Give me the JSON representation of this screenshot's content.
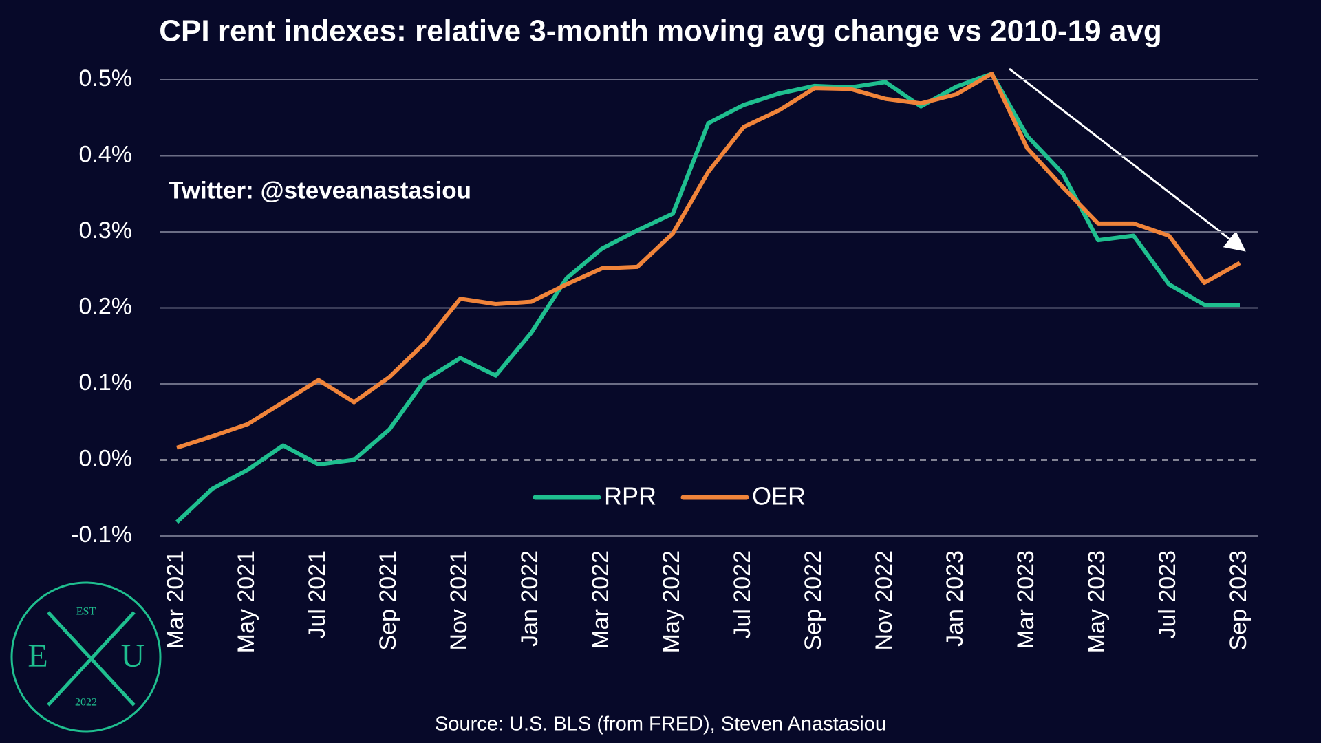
{
  "chart_data": {
    "type": "line",
    "title": "CPI rent indexes: relative 3-month moving avg change vs 2010-19 avg",
    "annotation": "Twitter: @steveanastasiou",
    "source": "Source: U.S. BLS (from FRED), Steven Anastasiou",
    "categories": [
      "Mar 2021",
      null,
      "May 2021",
      null,
      "Jul 2021",
      null,
      "Sep 2021",
      null,
      "Nov 2021",
      null,
      "Jan 2022",
      null,
      "Mar 2022",
      null,
      "May 2022",
      null,
      "Jul 2022",
      null,
      "Sep 2022",
      null,
      "Nov 2022",
      null,
      "Jan 2023",
      null,
      "Mar 2023",
      null,
      "May 2023",
      null,
      "Jul 2023",
      null,
      "Sep 2023"
    ],
    "series": [
      {
        "name": "RPR",
        "color": "#1fbf8f",
        "values": [
          -0.082,
          -0.038,
          -0.013,
          0.019,
          -0.006,
          0.0,
          0.04,
          0.105,
          0.134,
          0.111,
          0.167,
          0.239,
          0.278,
          0.302,
          0.324,
          0.443,
          0.467,
          0.482,
          0.492,
          0.49,
          0.497,
          0.465,
          0.491,
          0.508,
          0.426,
          0.377,
          0.289,
          0.295,
          0.231,
          0.204,
          0.204
        ]
      },
      {
        "name": "OER",
        "color": "#f0843a",
        "values": [
          0.016,
          0.031,
          0.047,
          0.076,
          0.105,
          0.076,
          0.109,
          0.154,
          0.212,
          0.205,
          0.208,
          0.231,
          0.252,
          0.254,
          0.298,
          0.379,
          0.438,
          0.46,
          0.489,
          0.488,
          0.475,
          0.469,
          0.481,
          0.508,
          0.41,
          0.359,
          0.311,
          0.311,
          0.295,
          0.233,
          0.259
        ]
      }
    ],
    "ylim": [
      -0.1,
      0.5
    ],
    "yticks": [
      {
        "value": -0.1,
        "label": "-0.1%"
      },
      {
        "value": 0,
        "label": "0.0%"
      },
      {
        "value": 0.1,
        "label": "0.1%"
      },
      {
        "value": 0.2,
        "label": "0.2%"
      },
      {
        "value": 0.3,
        "label": "0.3%"
      },
      {
        "value": 0.4,
        "label": "0.4%"
      },
      {
        "value": 0.5,
        "label": "0.5%"
      }
    ],
    "grid": true,
    "legend": "lower center"
  },
  "logo": {
    "top": "EST",
    "left": "E",
    "right": "U",
    "bottom": "2022"
  }
}
